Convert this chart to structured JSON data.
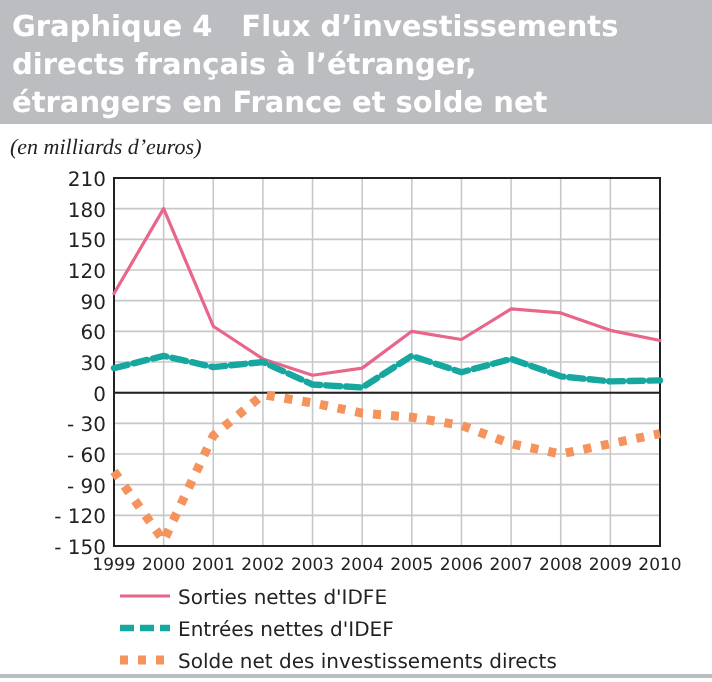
{
  "chart_data": {
    "type": "line",
    "title": "Graphique 4 Flux d’investissements directs français à l’étranger, étrangers en France et solde net",
    "subtitle": "(en milliards d’euros)",
    "x": [
      1999,
      2000,
      2001,
      2002,
      2003,
      2004,
      2005,
      2006,
      2007,
      2008,
      2009,
      2010
    ],
    "xlim": [
      1999,
      2010
    ],
    "xticks": [
      1999,
      2000,
      2001,
      2002,
      2003,
      2004,
      2005,
      2006,
      2007,
      2008,
      2009,
      2010
    ],
    "ylim": [
      -150,
      210
    ],
    "yticks": [
      {
        "value": -150,
        "label": "- 150"
      },
      {
        "value": -120,
        "label": "- 120"
      },
      {
        "value": -90,
        "label": "- 90"
      },
      {
        "value": -60,
        "label": "- 60"
      },
      {
        "value": -30,
        "label": "- 30"
      },
      0,
      30,
      60,
      90,
      120,
      150,
      180,
      210
    ],
    "grid": true,
    "legend": "bottom",
    "marker": "none",
    "series": [
      {
        "name": "Sorties nettes d'IDFE",
        "color": "#e8668a",
        "line_style": "solid",
        "values": [
          97,
          180,
          65,
          33,
          17,
          24,
          60,
          52,
          82,
          78,
          61,
          51
        ]
      },
      {
        "name": "Entrées nettes d'IDEF",
        "color": "#16a8a0",
        "line_style": "dashed",
        "values": [
          24,
          36,
          25,
          30,
          8,
          5,
          36,
          20,
          33,
          16,
          11,
          12
        ]
      },
      {
        "name": "Solde net des investissements directs",
        "color": "#f4935c",
        "line_style": "dotted",
        "values": [
          -77,
          -145,
          -42,
          -2,
          -10,
          -20,
          -24,
          -32,
          -50,
          -60,
          -50,
          -40
        ]
      }
    ]
  }
}
